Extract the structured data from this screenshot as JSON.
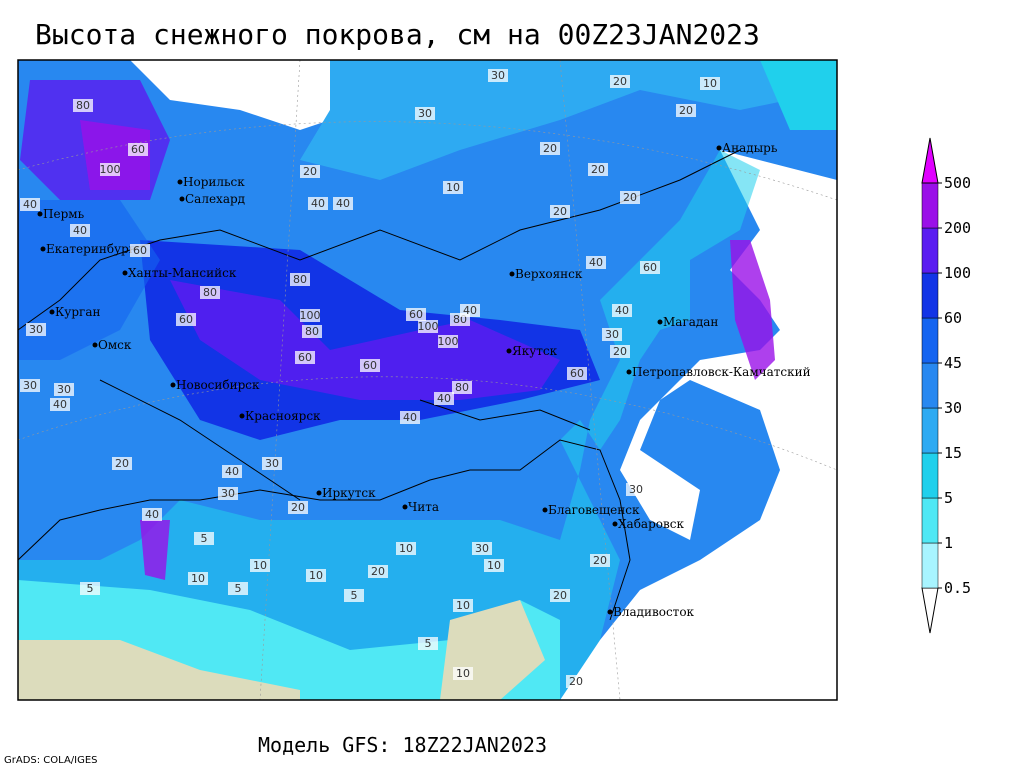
{
  "header": {
    "title": "Высота снежного покрова, см на 00Z23JAN2023"
  },
  "footer": {
    "model": "Модель GFS: 18Z22JAN2023",
    "credit": "GrADS: COLA/IGES"
  },
  "legend": {
    "levels": [
      0.5,
      1,
      5,
      15,
      30,
      45,
      60,
      100,
      200,
      500
    ],
    "colors": [
      "#ffffff",
      "#a8f4ff",
      "#50e8f4",
      "#20d0ec",
      "#2eaaf2",
      "#2888f0",
      "#1464f0",
      "#1234e6",
      "#5a1cf0",
      "#9a10e8",
      "#e000ff"
    ]
  },
  "cities": [
    "Анадырь",
    "Норильск",
    "Салехард",
    "Пермь",
    "Екатеринбург",
    "Ханты-Мансийск",
    "Верхоянск",
    "Курган",
    "Магадан",
    "Омск",
    "Якутск",
    "Петропавловск-Камчатский",
    "Новосибирск",
    "Красноярск",
    "Иркутск",
    "Чита",
    "Благовещенск",
    "Хабаровск",
    "Владивосток"
  ],
  "contour_labels": [
    30,
    20,
    10,
    30,
    20,
    20,
    20,
    10,
    100,
    60,
    20,
    40,
    40,
    20,
    20,
    40,
    60,
    80,
    40,
    40,
    60,
    80,
    60,
    80,
    100,
    80,
    60,
    100,
    100,
    80,
    40,
    60,
    30,
    30,
    40,
    80,
    40,
    60,
    60,
    40,
    30,
    20,
    30,
    20,
    40,
    30,
    30,
    40,
    5,
    10,
    10,
    20,
    5,
    10,
    30,
    10,
    5,
    10,
    20,
    5,
    10,
    20,
    5,
    10,
    20,
    40,
    20,
    30
  ]
}
